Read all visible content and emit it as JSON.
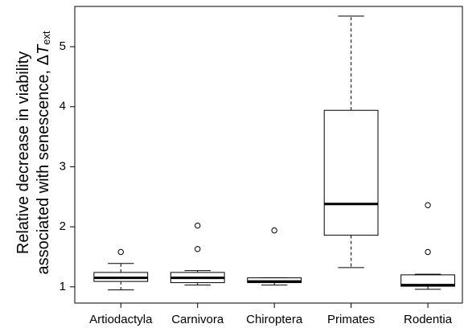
{
  "chart_data": {
    "type": "boxplot",
    "categories": [
      "Artiodactyla",
      "Carnivora",
      "Chiroptera",
      "Primates",
      "Rodentia"
    ],
    "boxes": [
      {
        "min": 0.95,
        "q1": 1.09,
        "median": 1.15,
        "q3": 1.24,
        "max": 1.39,
        "outliers": [
          1.58
        ]
      },
      {
        "min": 1.03,
        "q1": 1.07,
        "median": 1.15,
        "q3": 1.24,
        "max": 1.27,
        "outliers": [
          1.63,
          2.02
        ]
      },
      {
        "min": 1.03,
        "q1": 1.07,
        "median": 1.09,
        "q3": 1.15,
        "max": 1.15,
        "outliers": [
          1.94
        ]
      },
      {
        "min": 1.32,
        "q1": 1.86,
        "median": 2.38,
        "q3": 3.94,
        "max": 5.51,
        "outliers": []
      },
      {
        "min": 0.96,
        "q1": 1.01,
        "median": 1.03,
        "q3": 1.2,
        "max": 1.21,
        "outliers": [
          1.58,
          2.36
        ]
      }
    ],
    "color": "#000000",
    "box_fill": "#ffffff",
    "y_label_lines": [
      "Relative decrease in viability",
      "associated with senescence, Δ"
    ],
    "y_label_symbol": "T",
    "y_label_subscript": "ext",
    "ylim": [
      0.73,
      5.67
    ],
    "yticks": [
      1,
      2,
      3,
      4,
      5
    ]
  }
}
